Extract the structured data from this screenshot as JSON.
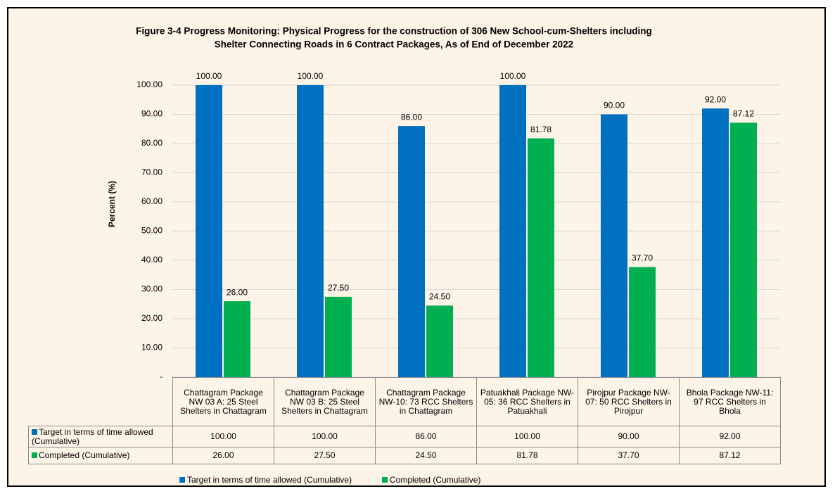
{
  "chart_data": {
    "type": "bar",
    "title": [
      "Figure 3-4  Progress Monitoring: Physical Progress for the construction of 306 New  School-cum-Shelters including",
      "Shelter Connecting Roads in 6 Contract Packages, As of End of December 2022"
    ],
    "ylabel": "Percent (%)",
    "categories": [
      "Chattagram Package NW 03 A: 25 Steel Shelters in Chattagram",
      "Chattagram Package NW 03 B: 25 Steel Shelters in Chattagram",
      "Chattagram Package NW-10: 73 RCC Shelters in Chattagram",
      "Patuakhali Package NW-05: 36 RCC Shelters in Patuakhali",
      "Pirojpur Package NW-07: 50 RCC Shelters in Pirojpur",
      "Bhola Package NW-11: 97 RCC Shelters in Bhola"
    ],
    "series": [
      {
        "name": "Target in terms of time allowed (Cumulative)",
        "color": "#0070c0",
        "values": [
          100,
          100,
          86,
          100,
          90,
          92
        ],
        "value_labels": [
          "100.00",
          "100.00",
          "86.00",
          "100.00",
          "90.00",
          "92.00"
        ]
      },
      {
        "name": "Completed (Cumulative)",
        "color": "#00b050",
        "values": [
          26,
          27.5,
          24.5,
          81.78,
          37.7,
          87.12
        ],
        "value_labels": [
          "26.00",
          "27.50",
          "24.50",
          "81.78",
          "37.70",
          "87.12"
        ]
      }
    ],
    "ylim": [
      0,
      100
    ],
    "yticks": [
      {
        "value": 0,
        "label": "-"
      },
      {
        "value": 10,
        "label": "10.00"
      },
      {
        "value": 20,
        "label": "20.00"
      },
      {
        "value": 30,
        "label": "30.00"
      },
      {
        "value": 40,
        "label": "40.00"
      },
      {
        "value": 50,
        "label": "50.00"
      },
      {
        "value": 60,
        "label": "60.00"
      },
      {
        "value": 70,
        "label": "70.00"
      },
      {
        "value": 80,
        "label": "80.00"
      },
      {
        "value": 90,
        "label": "90.00"
      },
      {
        "value": 100,
        "label": "100.00"
      }
    ],
    "grid": true,
    "legend": "bottom",
    "data_table": true
  }
}
